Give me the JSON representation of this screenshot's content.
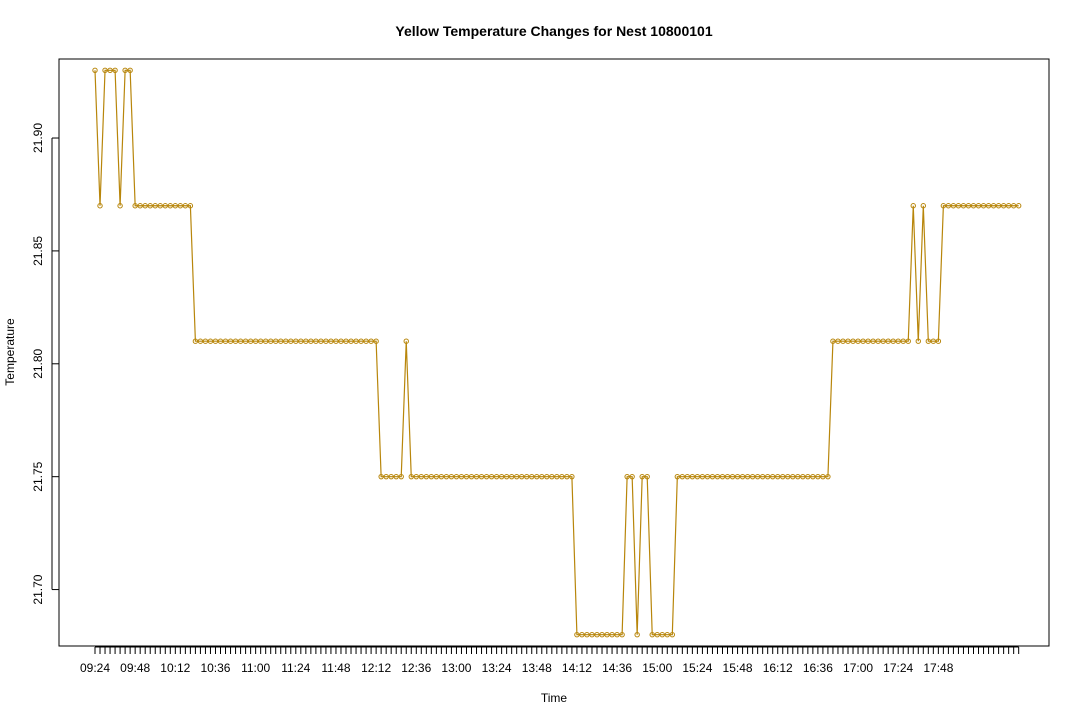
{
  "chart_data": {
    "type": "line",
    "title": "Yellow Temperature Changes for Nest 10800101",
    "xlabel": "Time",
    "ylabel": "Temperature",
    "series_color": "#B8860B",
    "yticks": [
      "21.70",
      "21.75",
      "21.80",
      "21.85",
      "21.90"
    ],
    "ylim": [
      21.675,
      21.935
    ],
    "xtick_labels": [
      "09:24",
      "09:48",
      "10:12",
      "10:36",
      "11:00",
      "11:24",
      "11:48",
      "12:12",
      "12:36",
      "13:00",
      "13:24",
      "13:48",
      "14:12",
      "14:36",
      "15:00",
      "15:24",
      "15:48",
      "16:12",
      "16:36",
      "17:00",
      "17:24",
      "17:48"
    ],
    "label_every": 8,
    "minutes_per_point": 3,
    "values": [
      21.93,
      21.87,
      21.93,
      21.93,
      21.93,
      21.87,
      21.93,
      21.93,
      21.87,
      21.87,
      21.87,
      21.87,
      21.87,
      21.87,
      21.87,
      21.87,
      21.87,
      21.87,
      21.87,
      21.87,
      21.81,
      21.81,
      21.81,
      21.81,
      21.81,
      21.81,
      21.81,
      21.81,
      21.81,
      21.81,
      21.81,
      21.81,
      21.81,
      21.81,
      21.81,
      21.81,
      21.81,
      21.81,
      21.81,
      21.81,
      21.81,
      21.81,
      21.81,
      21.81,
      21.81,
      21.81,
      21.81,
      21.81,
      21.81,
      21.81,
      21.81,
      21.81,
      21.81,
      21.81,
      21.81,
      21.81,
      21.81,
      21.75,
      21.75,
      21.75,
      21.75,
      21.75,
      21.81,
      21.75,
      21.75,
      21.75,
      21.75,
      21.75,
      21.75,
      21.75,
      21.75,
      21.75,
      21.75,
      21.75,
      21.75,
      21.75,
      21.75,
      21.75,
      21.75,
      21.75,
      21.75,
      21.75,
      21.75,
      21.75,
      21.75,
      21.75,
      21.75,
      21.75,
      21.75,
      21.75,
      21.75,
      21.75,
      21.75,
      21.75,
      21.75,
      21.75,
      21.68,
      21.68,
      21.68,
      21.68,
      21.68,
      21.68,
      21.68,
      21.68,
      21.68,
      21.68,
      21.75,
      21.75,
      21.68,
      21.75,
      21.75,
      21.68,
      21.68,
      21.68,
      21.68,
      21.68,
      21.75,
      21.75,
      21.75,
      21.75,
      21.75,
      21.75,
      21.75,
      21.75,
      21.75,
      21.75,
      21.75,
      21.75,
      21.75,
      21.75,
      21.75,
      21.75,
      21.75,
      21.75,
      21.75,
      21.75,
      21.75,
      21.75,
      21.75,
      21.75,
      21.75,
      21.75,
      21.75,
      21.75,
      21.75,
      21.75,
      21.75,
      21.81,
      21.81,
      21.81,
      21.81,
      21.81,
      21.81,
      21.81,
      21.81,
      21.81,
      21.81,
      21.81,
      21.81,
      21.81,
      21.81,
      21.81,
      21.81,
      21.87,
      21.81,
      21.87,
      21.81,
      21.81,
      21.81,
      21.87,
      21.87,
      21.87,
      21.87,
      21.87,
      21.87,
      21.87,
      21.87,
      21.87,
      21.87,
      21.87,
      21.87,
      21.87,
      21.87,
      21.87,
      21.87
    ]
  }
}
